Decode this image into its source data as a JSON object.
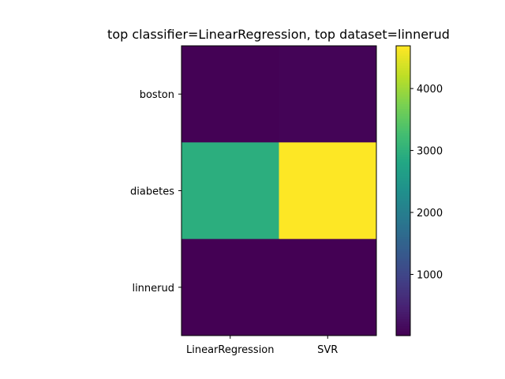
{
  "chart_data": {
    "type": "heatmap",
    "title": "top classifier=LinearRegression, top dataset=linnerud",
    "x_categories": [
      "LinearRegression",
      "SVR"
    ],
    "y_categories": [
      "boston",
      "diabetes",
      "linnerud"
    ],
    "values": [
      [
        25,
        60
      ],
      [
        2960,
        4690
      ],
      [
        12,
        18
      ]
    ],
    "colorbar": {
      "ticks": [
        1000,
        2000,
        3000,
        4000
      ],
      "range": [
        12,
        4690
      ]
    },
    "colormap": "viridis",
    "grid": false
  }
}
